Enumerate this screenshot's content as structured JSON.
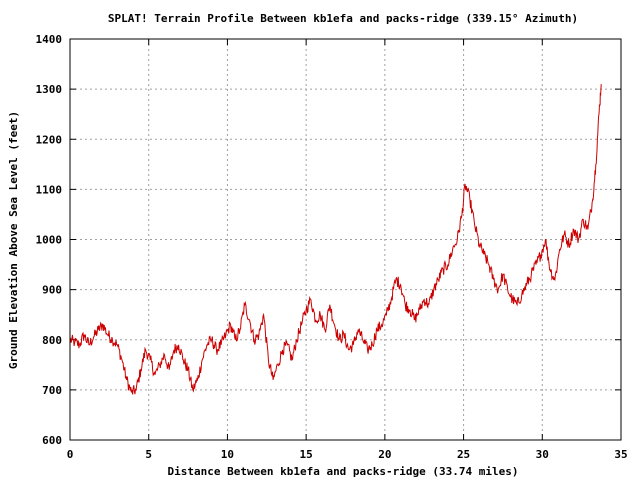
{
  "chart_data": {
    "type": "line",
    "title": "SPLAT! Terrain Profile Between kb1efa and packs-ridge (339.15° Azimuth)",
    "xlabel": "Distance Between kb1efa and packs-ridge (33.74 miles)",
    "ylabel": "Ground Elevation Above Sea Level (feet)",
    "xlim": [
      0,
      35
    ],
    "ylim": [
      600,
      1400
    ],
    "xticks": [
      0,
      5,
      10,
      15,
      20,
      25,
      30,
      35
    ],
    "yticks": [
      600,
      700,
      800,
      900,
      1000,
      1100,
      1200,
      1300,
      1400
    ],
    "grid": true,
    "colors": {
      "series": "#cc0000",
      "grid": "#a0a0a0",
      "frame": "#000000"
    },
    "series": [
      {
        "x": [
          0,
          0.3,
          0.6,
          0.9,
          1.2,
          1.5,
          1.8,
          2.1,
          2.4,
          2.7,
          3.0,
          3.3,
          3.6,
          3.9,
          4.2,
          4.5,
          4.8,
          5.1,
          5.4,
          5.7,
          6.0,
          6.3,
          6.6,
          6.9,
          7.2,
          7.5,
          7.8,
          8.1,
          8.4,
          8.7,
          9.0,
          9.3,
          9.6,
          9.9,
          10.2,
          10.5,
          10.8,
          11.1,
          11.4,
          11.7,
          12.0,
          12.3,
          12.6,
          12.9,
          13.2,
          13.5,
          13.8,
          14.1,
          14.4,
          14.7,
          15.0,
          15.3,
          15.6,
          15.9,
          16.2,
          16.5,
          16.8,
          17.1,
          17.4,
          17.7,
          18.0,
          18.3,
          18.6,
          18.9,
          19.2,
          19.5,
          19.8,
          20.1,
          20.4,
          20.7,
          21.0,
          21.3,
          21.6,
          21.9,
          22.2,
          22.5,
          22.8,
          23.1,
          23.4,
          23.7,
          24.0,
          24.3,
          24.6,
          24.9,
          25.1,
          25.4,
          25.7,
          26.0,
          26.3,
          26.6,
          26.9,
          27.2,
          27.5,
          27.8,
          28.1,
          28.4,
          28.7,
          29.0,
          29.3,
          29.6,
          29.9,
          30.2,
          30.5,
          30.8,
          31.1,
          31.4,
          31.7,
          32.0,
          32.3,
          32.6,
          32.9,
          33.2,
          33.4,
          33.6,
          33.74
        ],
        "y": [
          800,
          795,
          790,
          810,
          790,
          805,
          820,
          830,
          810,
          800,
          790,
          760,
          720,
          695,
          700,
          740,
          780,
          760,
          730,
          750,
          770,
          740,
          780,
          790,
          760,
          740,
          700,
          720,
          760,
          790,
          800,
          780,
          790,
          810,
          830,
          800,
          820,
          870,
          840,
          800,
          810,
          850,
          760,
          720,
          750,
          780,
          790,
          760,
          800,
          830,
          860,
          880,
          840,
          850,
          820,
          870,
          830,
          800,
          810,
          780,
          790,
          820,
          800,
          780,
          790,
          820,
          830,
          850,
          880,
          920,
          910,
          870,
          860,
          840,
          860,
          880,
          870,
          900,
          920,
          940,
          950,
          980,
          1000,
          1050,
          1110,
          1080,
          1030,
          990,
          970,
          950,
          920,
          900,
          930,
          900,
          880,
          870,
          890,
          910,
          930,
          950,
          970,
          1000,
          940,
          920,
          980,
          1010,
          990,
          1020,
          1000,
          1040,
          1020,
          1080,
          1150,
          1250,
          1310
        ]
      }
    ]
  }
}
